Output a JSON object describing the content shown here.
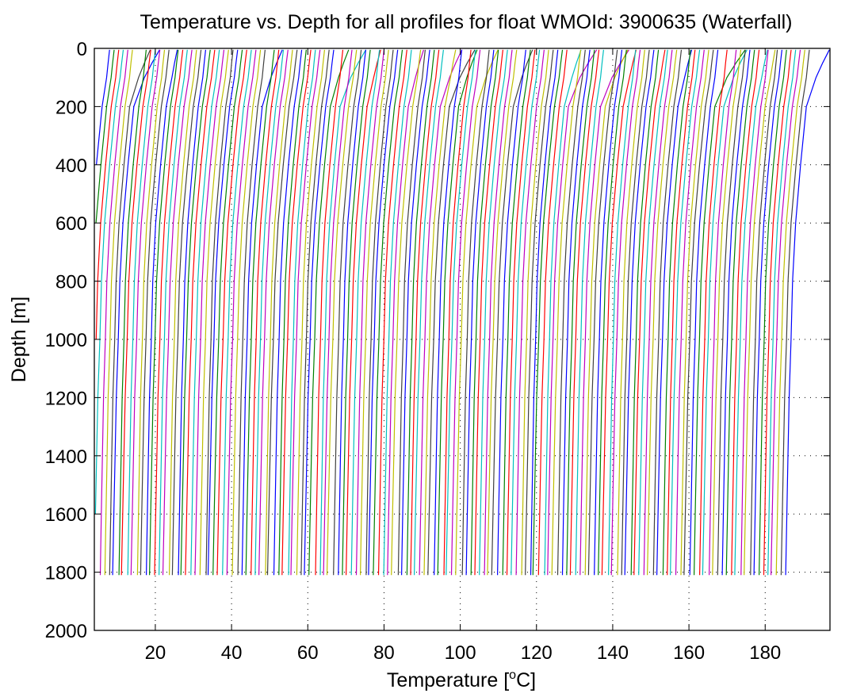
{
  "chart_data": {
    "type": "line",
    "title": "Temperature vs. Depth for all profiles for float WMOId: 3900635 (Waterfall)",
    "xlabel": "Temperature [",
    "xlabel_superscript": "o",
    "xlabel_suffix": "C]",
    "ylabel": "Depth [m]",
    "xlim": [
      4,
      197
    ],
    "ylim": [
      0,
      2000
    ],
    "y_reversed": true,
    "grid": true,
    "x_ticks": [
      20,
      40,
      60,
      80,
      100,
      120,
      140,
      160,
      180
    ],
    "x_tick_labels": [
      "20",
      "40",
      "60",
      "80",
      "100",
      "120",
      "140",
      "160",
      "180"
    ],
    "y_ticks": [
      0,
      200,
      400,
      600,
      800,
      1000,
      1200,
      1400,
      1600,
      1800,
      2000
    ],
    "y_tick_labels": [
      "0",
      "200",
      "400",
      "600",
      "800",
      "1000",
      "1200",
      "1400",
      "1600",
      "1800",
      "2000"
    ],
    "series_colors": [
      "#0000ff",
      "#008000",
      "#ff0000",
      "#00bfbf",
      "#bf00bf",
      "#bfbf00",
      "#404040"
    ],
    "profile_count": 155,
    "profile_offset_step": 1.2,
    "series": [
      {
        "depth": [
          5,
          50,
          100,
          200,
          400,
          600,
          800,
          1000,
          1200,
          1400,
          1600,
          1810
        ],
        "base_temperature": [
          8,
          7.6,
          7.2,
          6,
          4.5,
          3.2,
          2.4,
          2,
          1.5,
          1.2,
          0.9,
          0.6
        ]
      }
    ]
  }
}
